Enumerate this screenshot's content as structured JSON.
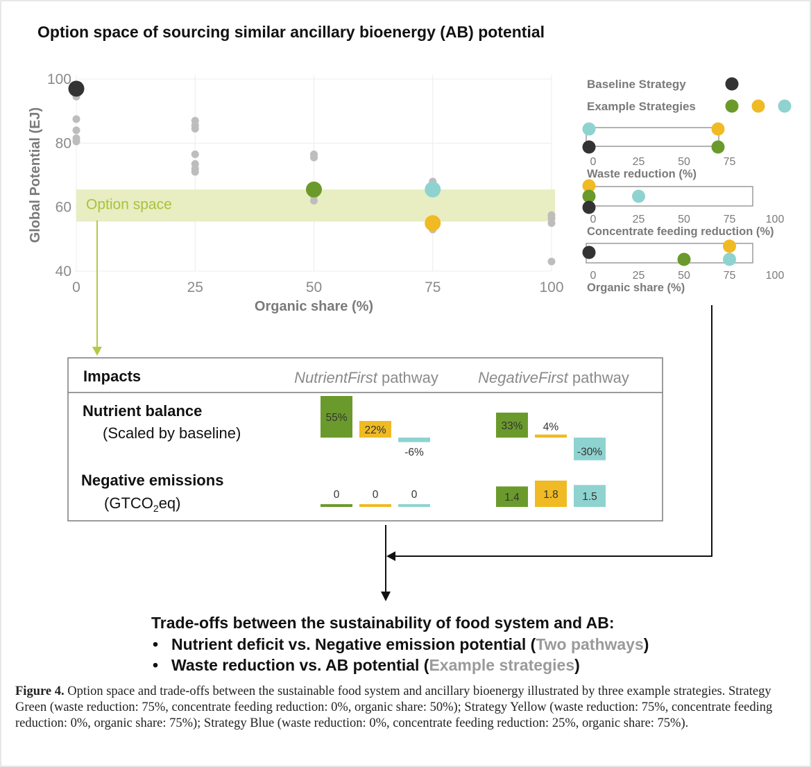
{
  "figure_title": "Option space of sourcing similar ancillary bioenergy (AB) potential",
  "colors": {
    "baseline": "#333333",
    "green": "#6b9a2c",
    "yellow": "#efba23",
    "blue": "#8fd3d0",
    "grey_point": "#bdbdbd",
    "option_band": "#e8edc2",
    "option_text": "#a9c23a"
  },
  "chart_data": [
    {
      "type": "scatter",
      "xlabel": "Organic share (%)",
      "ylabel": "Global Potential (EJ)",
      "xlim": [
        0,
        100
      ],
      "ylim": [
        40,
        100
      ],
      "xticks": [
        "0",
        "25",
        "50",
        "75",
        "100"
      ],
      "yticks": [
        "40",
        "60",
        "80",
        "100"
      ],
      "grid": true,
      "option_band": {
        "label": "Option space",
        "ymin": 55.5,
        "ymax": 65.5
      },
      "grey_points": [
        {
          "x": 0,
          "y": 97.5
        },
        {
          "x": 0,
          "y": 94.5
        },
        {
          "x": 0,
          "y": 87.5
        },
        {
          "x": 0,
          "y": 84
        },
        {
          "x": 0,
          "y": 81.5
        },
        {
          "x": 0,
          "y": 80.5
        },
        {
          "x": 25,
          "y": 87
        },
        {
          "x": 25,
          "y": 85.5
        },
        {
          "x": 25,
          "y": 84.5
        },
        {
          "x": 25,
          "y": 76.5
        },
        {
          "x": 25,
          "y": 73.5
        },
        {
          "x": 25,
          "y": 72
        },
        {
          "x": 25,
          "y": 71
        },
        {
          "x": 50,
          "y": 76.5
        },
        {
          "x": 50,
          "y": 75.5
        },
        {
          "x": 50,
          "y": 65
        },
        {
          "x": 50,
          "y": 63.5
        },
        {
          "x": 50,
          "y": 62
        },
        {
          "x": 75,
          "y": 68
        },
        {
          "x": 75,
          "y": 66
        },
        {
          "x": 75,
          "y": 56
        },
        {
          "x": 75,
          "y": 54.5
        },
        {
          "x": 75,
          "y": 53
        },
        {
          "x": 100,
          "y": 57.5
        },
        {
          "x": 100,
          "y": 56.5
        },
        {
          "x": 100,
          "y": 55
        },
        {
          "x": 100,
          "y": 43
        }
      ],
      "highlight_points": [
        {
          "series": "baseline",
          "x": 0,
          "y": 97
        },
        {
          "series": "green",
          "x": 50,
          "y": 65.5
        },
        {
          "series": "blue",
          "x": 75,
          "y": 65.5
        },
        {
          "series": "yellow",
          "x": 75,
          "y": 55
        }
      ]
    },
    {
      "type": "scatter",
      "legend": [
        {
          "label": "Baseline Strategy",
          "series": [
            "baseline"
          ]
        },
        {
          "label": "Example Strategies",
          "series": [
            "green",
            "yellow",
            "blue"
          ]
        }
      ],
      "strips": [
        {
          "label": "Waste reduction (%)",
          "ticks": [
            "0",
            "25",
            "50",
            "75"
          ],
          "xlim": [
            0,
            75
          ],
          "points": [
            {
              "series": "blue",
              "x": 0,
              "row": "top"
            },
            {
              "series": "baseline",
              "x": 0,
              "row": "bottom"
            },
            {
              "series": "yellow",
              "x": 75,
              "row": "top"
            },
            {
              "series": "green",
              "x": 75,
              "row": "bottom"
            }
          ]
        },
        {
          "label": "Concentrate feeding reduction (%)",
          "ticks": [
            "0",
            "25",
            "50",
            "75",
            "100"
          ],
          "xlim": [
            0,
            100
          ],
          "points": [
            {
              "series": "yellow",
              "x": 0,
              "row": "top"
            },
            {
              "series": "green",
              "x": 0,
              "row": "middle"
            },
            {
              "series": "baseline",
              "x": 0,
              "row": "bottom"
            },
            {
              "series": "blue",
              "x": 25,
              "row": "middle"
            }
          ]
        },
        {
          "label": "Organic share (%)",
          "ticks": [
            "0",
            "25",
            "50",
            "75",
            "100"
          ],
          "xlim": [
            0,
            100
          ],
          "points": [
            {
              "series": "baseline",
              "x": 0,
              "row": "middle"
            },
            {
              "series": "green",
              "x": 50,
              "row": "bottom"
            },
            {
              "series": "yellow",
              "x": 75,
              "row": "top"
            },
            {
              "series": "blue",
              "x": 75,
              "row": "bottom"
            }
          ]
        }
      ]
    },
    {
      "type": "bar",
      "header": "Impacts",
      "pathways": [
        {
          "name_italic": "NutrientFirst",
          "name_suffix": " pathway"
        },
        {
          "name_italic": "NegativeFirst",
          "name_suffix": " pathway"
        }
      ],
      "rows": [
        {
          "title": "Nutrient balance",
          "subtitle": "(Scaled by baseline)",
          "unit": "%",
          "values": [
            [
              {
                "series": "green",
                "value": 55,
                "label": "55%"
              },
              {
                "series": "yellow",
                "value": 22,
                "label": "22%"
              },
              {
                "series": "blue",
                "value": -6,
                "label": "-6%"
              }
            ],
            [
              {
                "series": "green",
                "value": 33,
                "label": "33%"
              },
              {
                "series": "yellow",
                "value": 4,
                "label": "4%"
              },
              {
                "series": "blue",
                "value": -30,
                "label": "-30%"
              }
            ]
          ]
        },
        {
          "title": "Negative emissions",
          "subtitle_pre": "(GTCO",
          "subtitle_sub": "2",
          "subtitle_post": "eq)",
          "values": [
            [
              {
                "series": "green",
                "value": 0,
                "label": "0"
              },
              {
                "series": "yellow",
                "value": 0,
                "label": "0"
              },
              {
                "series": "blue",
                "value": 0,
                "label": "0"
              }
            ],
            [
              {
                "series": "green",
                "value": 1.4,
                "label": "1.4"
              },
              {
                "series": "yellow",
                "value": 1.8,
                "label": "1.8"
              },
              {
                "series": "blue",
                "value": 1.5,
                "label": "1.5"
              }
            ]
          ]
        }
      ]
    }
  ],
  "tradeoffs": {
    "title": "Trade-offs between the sustainability of food system and AB:",
    "bullet": "•",
    "items": [
      {
        "pre": "Nutrient deficit vs. Negative emission potential (",
        "highlight": "Two pathways",
        "post": ")"
      },
      {
        "pre": "Waste reduction vs. AB potential (",
        "highlight": "Example strategies",
        "post": ")"
      }
    ]
  },
  "caption": {
    "label": "Figure 4.",
    "text": " Option space and trade-offs between the sustainable food system and ancillary bioenergy illustrated by three example strategies. Strategy Green (waste reduction: 75%, concentrate feeding reduction: 0%, organic share: 50%); Strategy Yellow (waste reduction: 75%, concentrate feeding reduction: 0%, organic share: 75%); Strategy Blue (waste reduction: 0%, concentrate feeding reduction: 25%, organic share: 75%)."
  }
}
